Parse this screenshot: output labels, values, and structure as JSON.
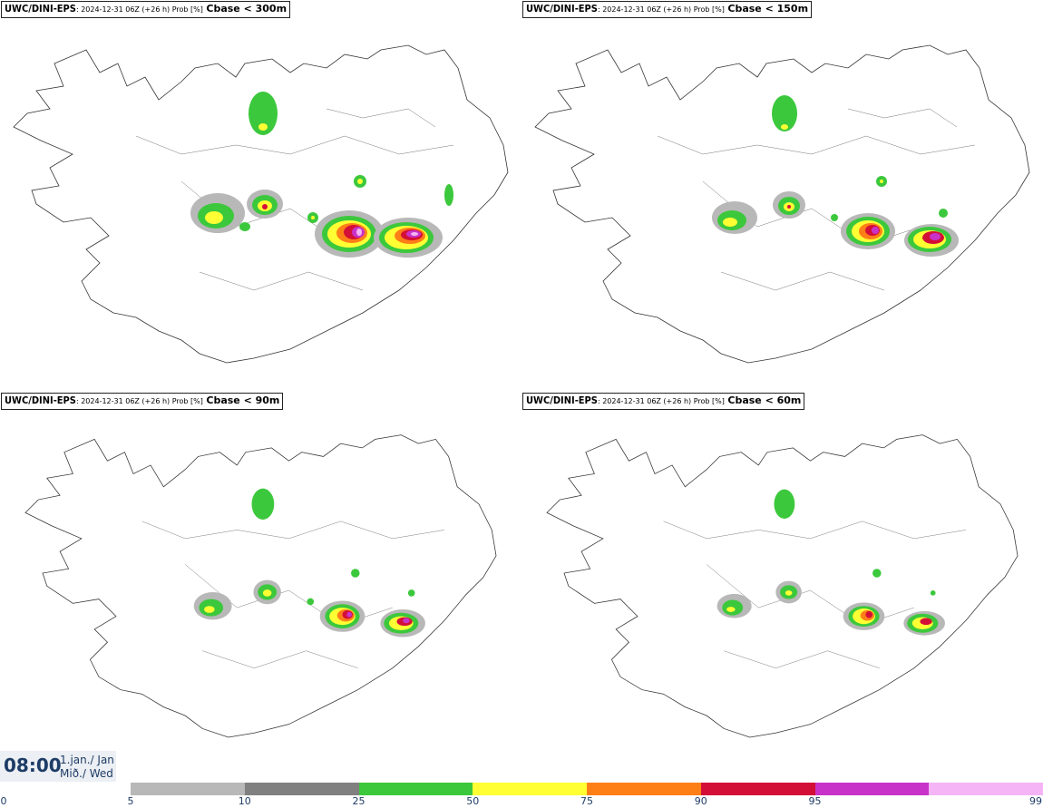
{
  "panels": [
    {
      "model": "UWC/DINI-EPS",
      "run": ": 2024-12-31 06Z (+26 h) Prob [%]",
      "variable": "Cbase < 300m"
    },
    {
      "model": "UWC/DINI-EPS",
      "run": ": 2024-12-31 06Z (+26 h) Prob [%]",
      "variable": "Cbase < 150m"
    },
    {
      "model": "UWC/DINI-EPS",
      "run": ": 2024-12-31 06Z (+26 h) Prob [%]",
      "variable": "Cbase < 90m"
    },
    {
      "model": "UWC/DINI-EPS",
      "run": ": 2024-12-31 06Z (+26 h) Prob [%]",
      "variable": "Cbase < 60m"
    }
  ],
  "valid_time": {
    "time": "08:00",
    "date_line1": "1.jan./ Jan",
    "date_line2": "Mið./ Wed"
  },
  "legend": {
    "ticks": [
      "0",
      "5",
      "10",
      "25",
      "50",
      "75",
      "90",
      "95",
      "99"
    ],
    "colors": [
      "#b8b8b8",
      "#808080",
      "#3cc83c",
      "#ffff33",
      "#ff7f17",
      "#d40f37",
      "#c832c8",
      "#f5b4f5"
    ]
  },
  "map_levels": {
    "p5": "#b8b8b8",
    "p10": "#808080",
    "p25": "#3cc83c",
    "p50": "#ffff33",
    "p75": "#ff7f17",
    "p90": "#d40f37",
    "p95": "#c832c8",
    "p99": "#f5b4f5"
  }
}
